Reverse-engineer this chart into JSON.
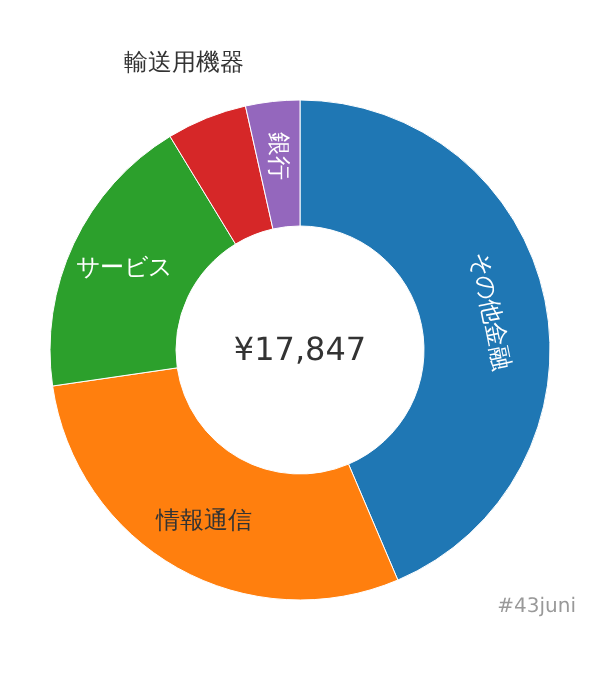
{
  "chart_data": {
    "type": "donut",
    "categories": [
      "その他金融",
      "情報通信",
      "サービス",
      "輸送用機器",
      "銀行"
    ],
    "values": [
      43.6,
      29.1,
      18.6,
      5.2,
      3.5
    ],
    "colors": [
      "#1f77b4",
      "#ff7f0e",
      "#2ca02c",
      "#d62728",
      "#9467bd"
    ],
    "annotations": [
      "¥17,847",
      "#43juni"
    ]
  }
}
